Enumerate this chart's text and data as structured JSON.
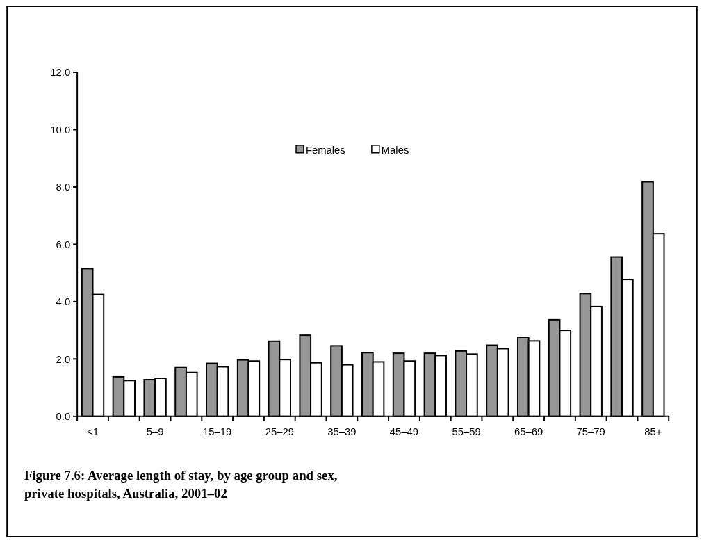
{
  "chart_data": {
    "type": "bar",
    "title": "Figure 7.6: Average length of stay, by age group and sex, private hospitals, Australia, 2001–02",
    "categories": [
      "<1",
      null,
      "5–9",
      null,
      "15–19",
      null,
      "25–29",
      null,
      "35–39",
      null,
      "45–49",
      null,
      "55–59",
      null,
      "65–69",
      null,
      "75–79",
      null,
      "85+"
    ],
    "series": [
      {
        "name": "Females",
        "color": "#969696",
        "values": [
          5.15,
          1.38,
          1.28,
          1.7,
          1.85,
          1.97,
          2.62,
          2.83,
          2.46,
          2.22,
          2.2,
          2.2,
          2.28,
          2.48,
          2.76,
          3.37,
          4.28,
          5.56,
          8.18
        ]
      },
      {
        "name": "Males",
        "color": "#ffffff",
        "values": [
          4.25,
          1.25,
          1.33,
          1.53,
          1.73,
          1.93,
          1.98,
          1.87,
          1.8,
          1.9,
          1.93,
          2.12,
          2.17,
          2.36,
          2.63,
          3.0,
          3.83,
          4.77,
          6.37
        ]
      }
    ],
    "ylim": [
      0,
      12
    ],
    "yticks": [
      {
        "value": 0,
        "label": "0.0"
      },
      {
        "value": 2,
        "label": "2.0"
      },
      {
        "value": 4,
        "label": "4.0"
      },
      {
        "value": 6,
        "label": "6.0"
      },
      {
        "value": 8,
        "label": "8.0"
      },
      {
        "value": 10,
        "label": "10.0"
      },
      {
        "value": 12,
        "label": "12.0"
      }
    ],
    "grid": false,
    "legend": "top"
  }
}
